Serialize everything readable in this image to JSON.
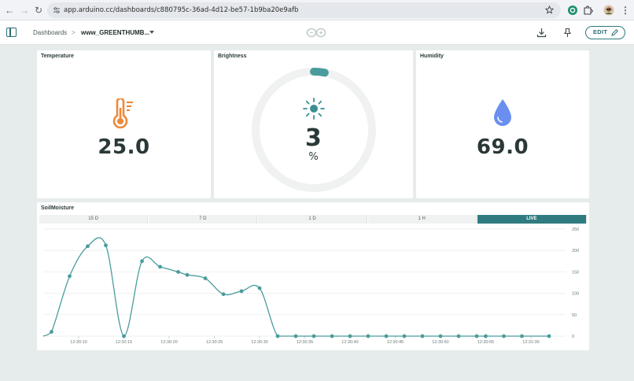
{
  "browser": {
    "url": "app.arduino.cc/dashboards/c880795c-36ad-4d12-be57-1b9ba20e9afb"
  },
  "header": {
    "breadcrumb_root": "Dashboards",
    "breadcrumb_sep": ">",
    "dashboard_name": "www_GREENTHUMB...",
    "edit_label": "EDIT"
  },
  "widgets": {
    "temperature": {
      "title": "Temperature",
      "value": "25.0"
    },
    "brightness": {
      "title": "Brightness",
      "value": "3",
      "unit": "%",
      "fraction": 0.03
    },
    "humidity": {
      "title": "Humidity",
      "value": "69.0"
    }
  },
  "soil": {
    "title": "SoilMoisture",
    "tabs": [
      {
        "label": "15 D",
        "active": false
      },
      {
        "label": "7 D",
        "active": false
      },
      {
        "label": "1 D",
        "active": false
      },
      {
        "label": "1 H",
        "active": false
      },
      {
        "label": "LIVE",
        "active": true
      }
    ]
  },
  "colors": {
    "accent": "#2f7b80",
    "line": "#4a9c9c",
    "temperature_icon": "#ec8a3c",
    "humidity_icon": "#6a8ff0",
    "brightness_icon": "#3a8f93"
  },
  "chart_data": {
    "type": "line",
    "title": "",
    "xlabel": "",
    "ylabel": "",
    "ylim": [
      0,
      250
    ],
    "yticks": [
      "0",
      "50",
      "100",
      "150",
      "200",
      "250"
    ],
    "xticks": [
      "12:30:10",
      "12:30:15",
      "12:30:20",
      "12:30:25",
      "12:30:30",
      "12:30:35",
      "12:30:40",
      "12:30:45",
      "12:30:50",
      "12:30:55",
      "12:31:00"
    ],
    "grid": true,
    "series": [
      {
        "x": [
          "12:30:07",
          "12:30:09",
          "12:30:11",
          "12:30:13",
          "12:30:15",
          "12:30:17",
          "12:30:19",
          "12:30:21",
          "12:30:22",
          "12:30:24",
          "12:30:26",
          "12:30:28",
          "12:30:30",
          "12:30:32",
          "12:30:34",
          "12:30:36",
          "12:30:38",
          "12:30:40",
          "12:30:42",
          "12:30:44",
          "12:30:46",
          "12:30:48",
          "12:30:50",
          "12:30:52",
          "12:30:54",
          "12:30:55",
          "12:30:57",
          "12:30:59",
          "12:31:02"
        ],
        "y": [
          10,
          140,
          210,
          212,
          0,
          175,
          162,
          150,
          143,
          135,
          98,
          105,
          112,
          0,
          0,
          0,
          0,
          0,
          0,
          0,
          0,
          0,
          0,
          0,
          0,
          0,
          0,
          0,
          0
        ]
      }
    ]
  }
}
